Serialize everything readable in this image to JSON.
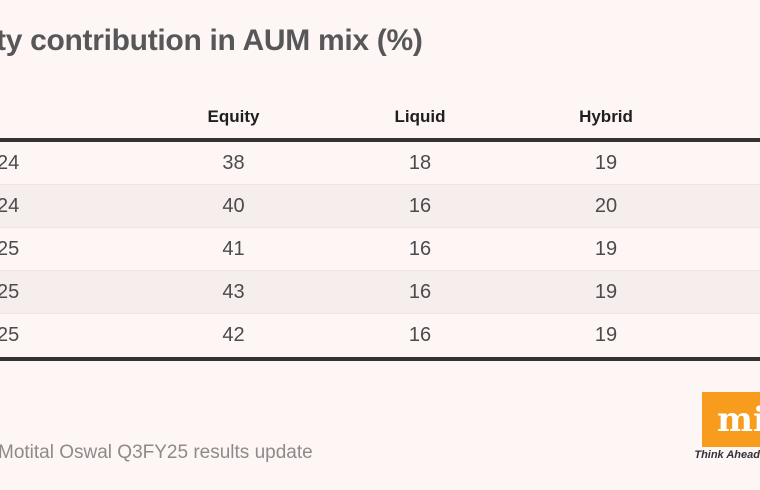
{
  "title": "ty contribution in AUM mix (%)",
  "chart_data": {
    "type": "table",
    "title": "ty contribution in AUM mix (%)",
    "columns": [
      "",
      "Equity",
      "Liquid",
      "Hybrid"
    ],
    "rows": [
      [
        "24",
        38,
        18,
        19
      ],
      [
        "24",
        40,
        16,
        20
      ],
      [
        "25",
        41,
        16,
        19
      ],
      [
        "25",
        43,
        16,
        19
      ],
      [
        "25",
        42,
        16,
        19
      ]
    ],
    "layout_hints": {
      "striped_rows": [
        2,
        4
      ],
      "header_rule_color": "#333333",
      "bottom_rule_color": "#333333",
      "stripe_color": "#F5EEEC",
      "background_color": "#FDF6F4"
    },
    "source": "Motital Oswal Q3FY25 results update"
  },
  "source_line": "Motital Oswal Q3FY25 results update",
  "logo": {
    "text": "mi",
    "tagline": "Think Ahead.",
    "accent_color": "#F89C1E"
  }
}
